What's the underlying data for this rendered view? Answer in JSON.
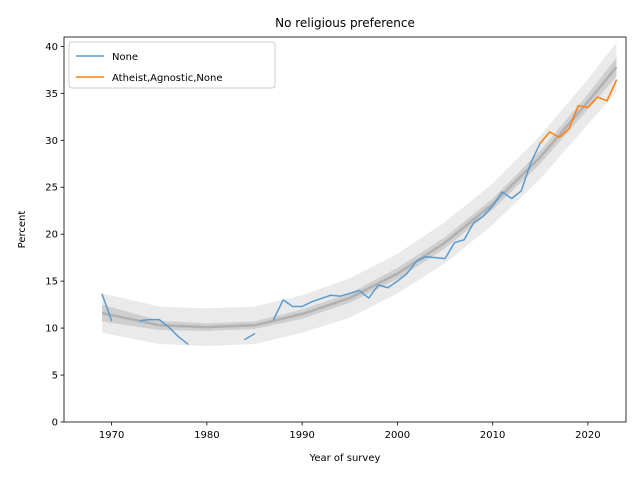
{
  "chart_data": {
    "type": "line",
    "title": "No religious preference",
    "xlabel": "Year of survey",
    "ylabel": "Percent",
    "xlim": [
      1965,
      2024
    ],
    "ylim": [
      0,
      41
    ],
    "x_ticks": [
      1970,
      1980,
      1990,
      2000,
      2010,
      2020
    ],
    "y_ticks": [
      0,
      5,
      10,
      15,
      20,
      25,
      30,
      35,
      40
    ],
    "grid": false,
    "legend_position": "top-left",
    "series": [
      {
        "name": "None",
        "color": "#5b9bcf",
        "segments": [
          {
            "x": [
              1969,
              1970
            ],
            "y": [
              13.6,
              10.8
            ]
          },
          {
            "x": [
              1973,
              1974,
              1975,
              1976,
              1977,
              1978
            ],
            "y": [
              10.8,
              10.9,
              10.9,
              10.1,
              9.1,
              8.3
            ]
          },
          {
            "x": [
              1984,
              1985
            ],
            "y": [
              8.8,
              9.4
            ]
          },
          {
            "x": [
              1987,
              1988,
              1989,
              1990,
              1991,
              1993,
              1994,
              1996,
              1997,
              1998,
              1999,
              2000,
              2001,
              2002,
              2003,
              2004,
              2005,
              2006,
              2007,
              2008,
              2009,
              2010,
              2011,
              2012,
              2013,
              2014,
              2015
            ],
            "y": [
              10.9,
              13.0,
              12.3,
              12.3,
              12.8,
              13.5,
              13.4,
              14.0,
              13.2,
              14.6,
              14.3,
              15.0,
              15.8,
              17.1,
              17.6,
              17.5,
              17.4,
              19.1,
              19.4,
              21.2,
              21.9,
              23.0,
              24.5,
              23.8,
              24.6,
              27.6,
              29.7
            ]
          }
        ]
      },
      {
        "name": "Atheist,Agnostic,None",
        "color": "#ff7f0e",
        "segments": [
          {
            "x": [
              2015,
              2016,
              2017,
              2018,
              2019,
              2020,
              2021,
              2022,
              2023
            ],
            "y": [
              29.7,
              30.9,
              30.3,
              31.2,
              33.7,
              33.5,
              34.6,
              34.2,
              36.4
            ]
          }
        ]
      }
    ],
    "trend": {
      "color": "#a9a9a9",
      "x": [
        1969,
        1975,
        1980,
        1985,
        1990,
        1995,
        2000,
        2005,
        2010,
        2015,
        2020,
        2023
      ],
      "y": [
        11.6,
        10.3,
        10.1,
        10.3,
        11.5,
        13.2,
        15.8,
        19.1,
        23.2,
        28.2,
        34.1,
        37.8
      ],
      "band_inner": [
        0.9,
        0.5,
        0.4,
        0.4,
        0.5,
        0.5,
        0.6,
        0.6,
        0.6,
        0.7,
        0.8,
        1.0
      ],
      "band_outer": [
        2.1,
        2.0,
        2.0,
        2.0,
        2.0,
        2.1,
        2.1,
        2.2,
        2.2,
        2.3,
        2.4,
        2.6
      ]
    }
  }
}
